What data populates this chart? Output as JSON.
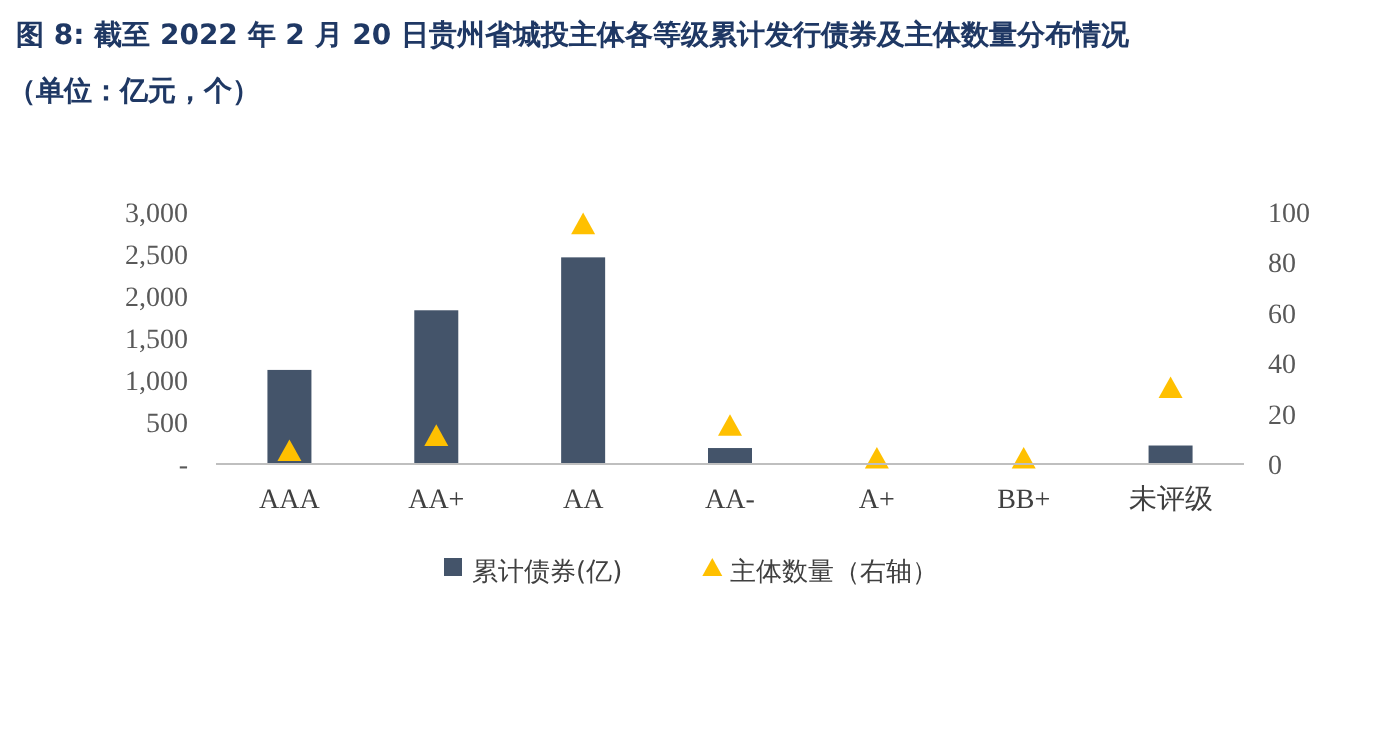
{
  "chart_data": {
    "type": "bar",
    "title": "图 8: 截至 2022 年 2 月 20 日贵州省城投主体各等级累计发行债券及主体数量分布情况",
    "subtitle": "（单位：亿元，个）",
    "categories": [
      "AAA",
      "AA+",
      "AA",
      "AA-",
      "A+",
      "BB+",
      "未评级"
    ],
    "series": [
      {
        "name": "累计债券(亿)",
        "type": "bar",
        "color": "#44546a",
        "values": [
          1120,
          1830,
          2460,
          190,
          0,
          0,
          220
        ]
      },
      {
        "name": "主体数量（右轴）",
        "type": "scatter",
        "marker": "triangle",
        "axis": "y2",
        "color": "#ffc000",
        "values": [
          5,
          11,
          95,
          15,
          2,
          2,
          30
        ]
      }
    ],
    "ylim": [
      0,
      3000
    ],
    "yticks": [
      {
        "value": 0,
        "label": "-"
      },
      {
        "value": 500,
        "label": "500"
      },
      {
        "value": 1000,
        "label": "1,000"
      },
      {
        "value": 1500,
        "label": "1,500"
      },
      {
        "value": 2000,
        "label": "2,000"
      },
      {
        "value": 2500,
        "label": "2,500"
      },
      {
        "value": 3000,
        "label": "3,000"
      }
    ],
    "y2lim": [
      0,
      100
    ],
    "y2ticks": [
      0,
      20,
      40,
      60,
      80,
      100
    ],
    "legend": "bottom",
    "grid": false
  }
}
